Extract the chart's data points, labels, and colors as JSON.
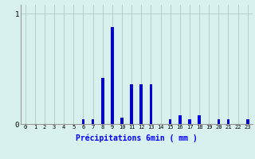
{
  "title": "",
  "xlabel": "Précipitations 6min ( mm )",
  "hours": [
    0,
    1,
    2,
    3,
    4,
    5,
    6,
    7,
    8,
    9,
    10,
    11,
    12,
    13,
    14,
    15,
    16,
    17,
    18,
    19,
    20,
    21,
    22,
    23
  ],
  "values": [
    0.0,
    0.0,
    0.0,
    0.0,
    0.0,
    0.0,
    0.04,
    0.04,
    0.42,
    0.88,
    0.06,
    0.36,
    0.36,
    0.36,
    0.0,
    0.04,
    0.08,
    0.04,
    0.08,
    0.0,
    0.04,
    0.04,
    0.0,
    0.04
  ],
  "bar_color": "#0000dd",
  "bg_color": "#d8f0ee",
  "grid_color": "#aec8c4",
  "yticks": [
    0,
    1
  ],
  "ylim": [
    0,
    1.08
  ],
  "xlim": [
    -0.5,
    23.5
  ],
  "bar_width": 0.3
}
